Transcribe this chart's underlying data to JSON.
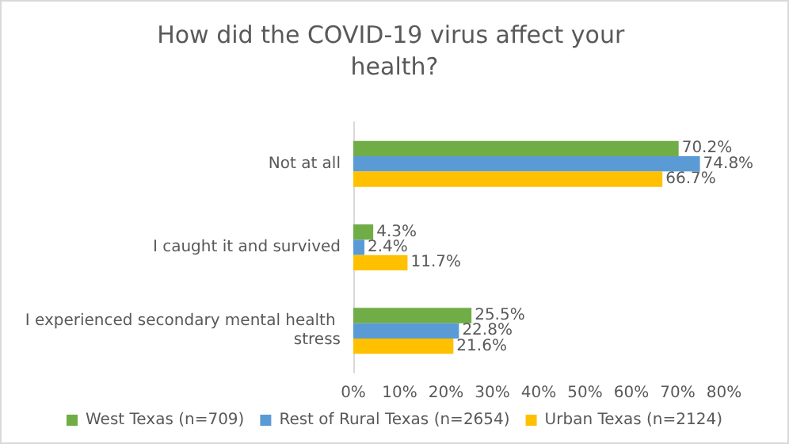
{
  "chart_data": {
    "type": "bar",
    "orientation": "horizontal",
    "title": "How did the COVID-19 virus affect your health?",
    "categories": [
      "Not at all",
      "I caught it and survived",
      "I experienced secondary mental health stress"
    ],
    "series": [
      {
        "name": "West Texas (n=709)",
        "color": "#70ad47",
        "values": [
          70.2,
          4.3,
          25.5
        ],
        "value_labels": [
          "70.2%",
          "4.3%",
          "25.5%"
        ]
      },
      {
        "name": "Rest of Rural Texas (n=2654)",
        "color": "#5b9bd5",
        "values": [
          74.8,
          2.4,
          22.8
        ],
        "value_labels": [
          "74.8%",
          "2.4%",
          "22.8%"
        ]
      },
      {
        "name": "Urban Texas (n=2124)",
        "color": "#ffc000",
        "values": [
          66.7,
          11.7,
          21.6
        ],
        "value_labels": [
          "66.7%",
          "11.7%",
          "21.6%"
        ]
      }
    ],
    "xlim": [
      0,
      80
    ],
    "xticks": [
      {
        "value": 0,
        "label": "0%"
      },
      {
        "value": 10,
        "label": "10%"
      },
      {
        "value": 20,
        "label": "20%"
      },
      {
        "value": 30,
        "label": "30%"
      },
      {
        "value": 40,
        "label": "40%"
      },
      {
        "value": 50,
        "label": "50%"
      },
      {
        "value": 60,
        "label": "60%"
      },
      {
        "value": 70,
        "label": "70%"
      },
      {
        "value": 80,
        "label": "80%"
      }
    ],
    "grid": false,
    "legend": "bottom"
  }
}
